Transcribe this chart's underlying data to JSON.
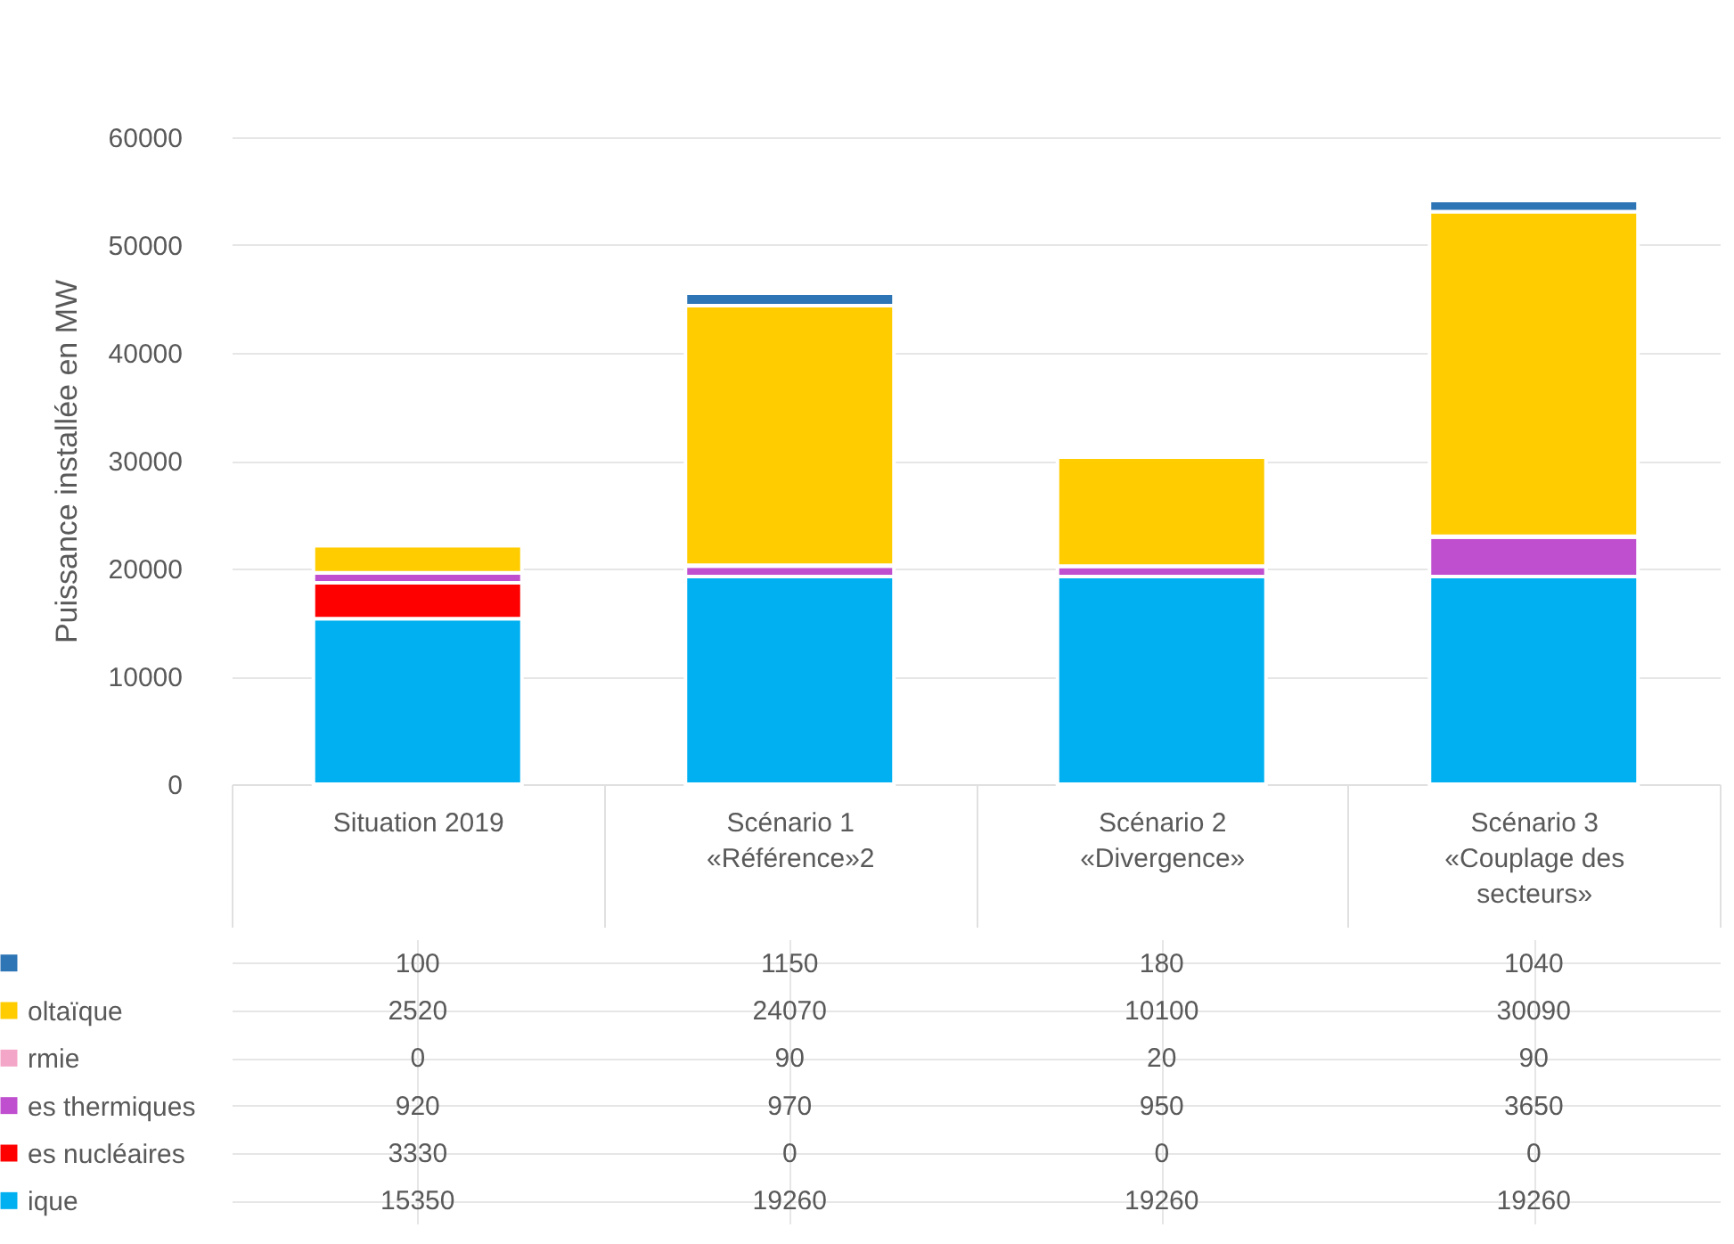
{
  "chart_data": {
    "type": "bar",
    "stacked": true,
    "ylabel": "Puissance installée en MW",
    "categories": [
      "Situation 2019",
      "Scénario 1 «Référence»2",
      "Scénario 2 «Divergence»",
      "Scénario 3 «Couplage des secteurs»"
    ],
    "series": [
      {
        "name": "ique",
        "color": "#00b0f0",
        "values": [
          15350,
          19260,
          19260,
          19260
        ]
      },
      {
        "name": "es nucléaires",
        "color": "#ff0000",
        "values": [
          3330,
          0,
          0,
          0
        ]
      },
      {
        "name": "es thermiques",
        "color": "#c04fd0",
        "values": [
          920,
          970,
          950,
          3650
        ]
      },
      {
        "name": "rmie",
        "color": "#f4a6c8",
        "values": [
          0,
          90,
          20,
          90
        ]
      },
      {
        "name": "oltaïque",
        "color": "#ffcc00",
        "values": [
          2520,
          24070,
          10100,
          30090
        ]
      },
      {
        "color": "#2e75b6",
        "values": [
          100,
          1150,
          180,
          1040
        ]
      }
    ],
    "ylim": [
      0,
      60000
    ],
    "yticks": [
      0,
      10000,
      20000,
      30000,
      40000,
      50000,
      60000
    ],
    "grid": "y",
    "legend": "left",
    "data_labels": true
  }
}
